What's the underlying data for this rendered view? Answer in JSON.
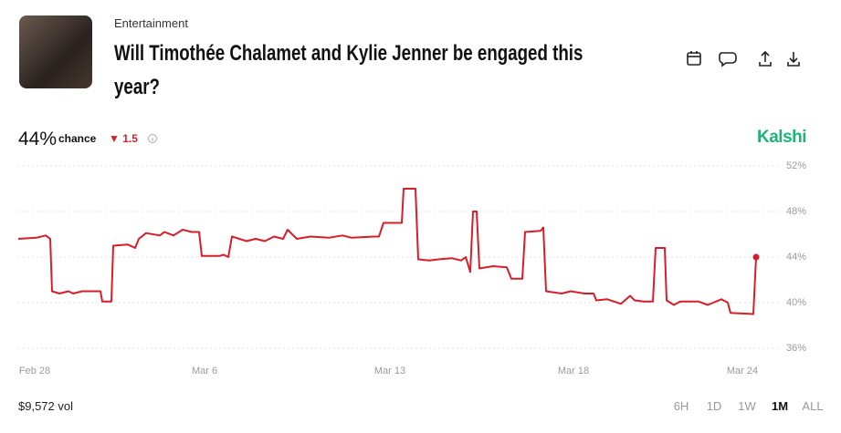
{
  "header": {
    "category": "Entertainment",
    "title": "Will Timothée Chalamet and Kylie Jenner be engaged this year?"
  },
  "market": {
    "chance": "44%",
    "chance_label": "chance",
    "change": 1.5,
    "brand": "Kalshi",
    "volume": "$9,572 vol",
    "ranges": [
      "6H",
      "1D",
      "1W",
      "1M",
      "ALL"
    ],
    "active_range": "1M"
  },
  "chart_data": {
    "type": "line",
    "color": "#d71e28",
    "x": [
      0,
      20,
      30,
      35,
      37,
      45,
      55,
      60,
      70,
      90,
      92,
      102,
      104,
      120,
      128,
      132,
      140,
      155,
      160,
      170,
      180,
      190,
      198,
      201,
      220,
      225,
      230,
      234,
      250,
      260,
      270,
      280,
      290,
      295,
      305,
      320,
      340,
      355,
      365,
      390,
      395,
      400,
      420,
      422,
      435,
      438,
      450,
      460,
      475,
      485,
      490,
      495,
      498,
      502,
      505,
      520,
      535,
      540,
      552,
      555,
      572,
      575,
      578,
      595,
      605,
      620,
      630,
      633,
      645,
      660,
      670,
      675,
      685,
      695,
      698,
      708,
      710,
      718,
      725,
      745,
      755,
      770,
      777,
      780,
      805,
      808
    ],
    "values": [
      45.6,
      45.7,
      45.9,
      45.6,
      41.0,
      40.8,
      41.0,
      40.8,
      41.0,
      41.0,
      40.1,
      40.1,
      45.0,
      45.1,
      44.8,
      45.6,
      46.1,
      45.9,
      46.2,
      45.9,
      46.4,
      46.2,
      46.2,
      44.1,
      44.1,
      44.2,
      44.0,
      45.8,
      45.4,
      45.6,
      45.4,
      45.8,
      45.6,
      46.4,
      45.6,
      45.8,
      45.7,
      45.9,
      45.7,
      45.8,
      45.8,
      47.0,
      47.0,
      50.0,
      50.0,
      43.8,
      43.7,
      43.8,
      43.9,
      43.7,
      44.0,
      42.7,
      48.0,
      48.0,
      43.0,
      43.2,
      43.1,
      42.1,
      42.1,
      46.2,
      46.3,
      46.6,
      41.0,
      40.8,
      41.0,
      40.8,
      40.8,
      40.2,
      40.3,
      39.9,
      40.6,
      40.2,
      40.1,
      40.1,
      44.8,
      44.8,
      40.2,
      39.8,
      40.1,
      40.1,
      39.8,
      40.3,
      40.0,
      39.1,
      39.0,
      44.0
    ],
    "xlim": [
      0,
      808
    ],
    "ylim": [
      35.2,
      52.8
    ],
    "xticks": [
      {
        "value": 18,
        "label": "Feb 28"
      },
      {
        "value": 204,
        "label": "Mar 6"
      },
      {
        "value": 407,
        "label": "Mar 13"
      },
      {
        "value": 608,
        "label": "Mar 18"
      },
      {
        "value": 793,
        "label": "Mar 24"
      }
    ],
    "yticks": [
      {
        "value": 52,
        "label": "52%"
      },
      {
        "value": 48,
        "label": "48%"
      },
      {
        "value": 44,
        "label": "44%"
      },
      {
        "value": 40,
        "label": "40%"
      },
      {
        "value": 36,
        "label": "36%"
      }
    ],
    "grid": true
  }
}
